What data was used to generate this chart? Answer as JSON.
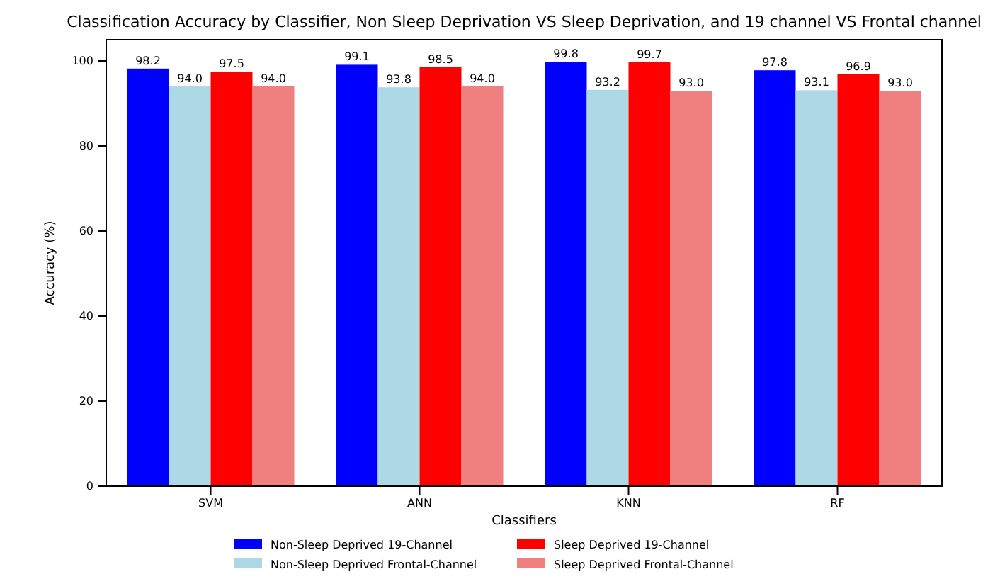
{
  "chart_data": {
    "type": "bar",
    "title": "Classification Accuracy by Classifier, Non Sleep Deprivation VS Sleep Deprivation, and 19 channel VS Frontal channel",
    "xlabel": "Classifiers",
    "ylabel": "Accuracy (%)",
    "categories": [
      "SVM",
      "ANN",
      "KNN",
      "RF"
    ],
    "series": [
      {
        "name": "Non-Sleep Deprived 19-Channel",
        "color": "#0000ff",
        "values": [
          98.2,
          99.1,
          99.8,
          97.8
        ],
        "value_labels": [
          "98.2",
          "99.1",
          "99.8",
          "97.8"
        ]
      },
      {
        "name": "Non-Sleep Deprived Frontal-Channel",
        "color": "#add8e6",
        "values": [
          94,
          93.8,
          93.2,
          93.1
        ],
        "value_labels": [
          "94.0",
          "93.8",
          "93.2",
          "93.1"
        ]
      },
      {
        "name": "Sleep Deprived 19-Channel",
        "color": "#ff0000",
        "values": [
          97.5,
          98.5,
          99.7,
          96.9
        ],
        "value_labels": [
          "97.5",
          "98.5",
          "99.7",
          "96.9"
        ]
      },
      {
        "name": "Sleep Deprived Frontal-Channel",
        "color": "#f08080",
        "values": [
          94,
          94,
          93,
          93
        ],
        "value_labels": [
          "94.0",
          "94.0",
          "93.0",
          "93.0"
        ]
      }
    ],
    "ylim": [
      0,
      105
    ],
    "yticks": [
      0,
      20,
      40,
      60,
      80,
      100
    ],
    "legend": "bottom"
  }
}
